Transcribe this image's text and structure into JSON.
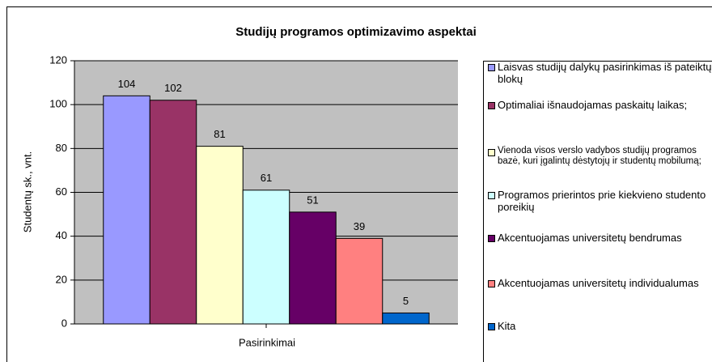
{
  "chart_data": {
    "type": "bar",
    "title": "Studijų programos optimizavimo aspektai",
    "x_label": "Pasirinkimai",
    "y_label": "Studentų sk., vnt.",
    "categories": [
      "Pasirinkimai"
    ],
    "series": [
      {
        "name": "Laisvas studijų dalykų pasirinkimas iš pateiktų blokų",
        "color": "#9999ff",
        "values": [
          104
        ]
      },
      {
        "name": "Optimaliai išnaudojamas paskaitų laikas;",
        "color": "#993366",
        "values": [
          102
        ]
      },
      {
        "name": "Vienoda visos verslo vadybos studijų programos bazė, kuri įgalintų dėstytojų ir studentų mobilumą;",
        "color": "#ffffcc",
        "values": [
          81
        ]
      },
      {
        "name": "Programos prierintos prie kiekvieno studento poreikių",
        "color": "#ccffff",
        "values": [
          61
        ]
      },
      {
        "name": "Akcentuojamas universitetų bendrumas",
        "color": "#660066",
        "values": [
          51
        ]
      },
      {
        "name": "Akcentuojamas universitetų individualumas",
        "color": "#ff8080",
        "values": [
          39
        ]
      },
      {
        "name": "Kita",
        "color": "#0066cc",
        "values": [
          5
        ]
      }
    ],
    "ylim": [
      0,
      120
    ],
    "yticks": [
      0,
      20,
      40,
      60,
      80,
      100,
      120
    ],
    "grid": true,
    "legend": "right"
  }
}
